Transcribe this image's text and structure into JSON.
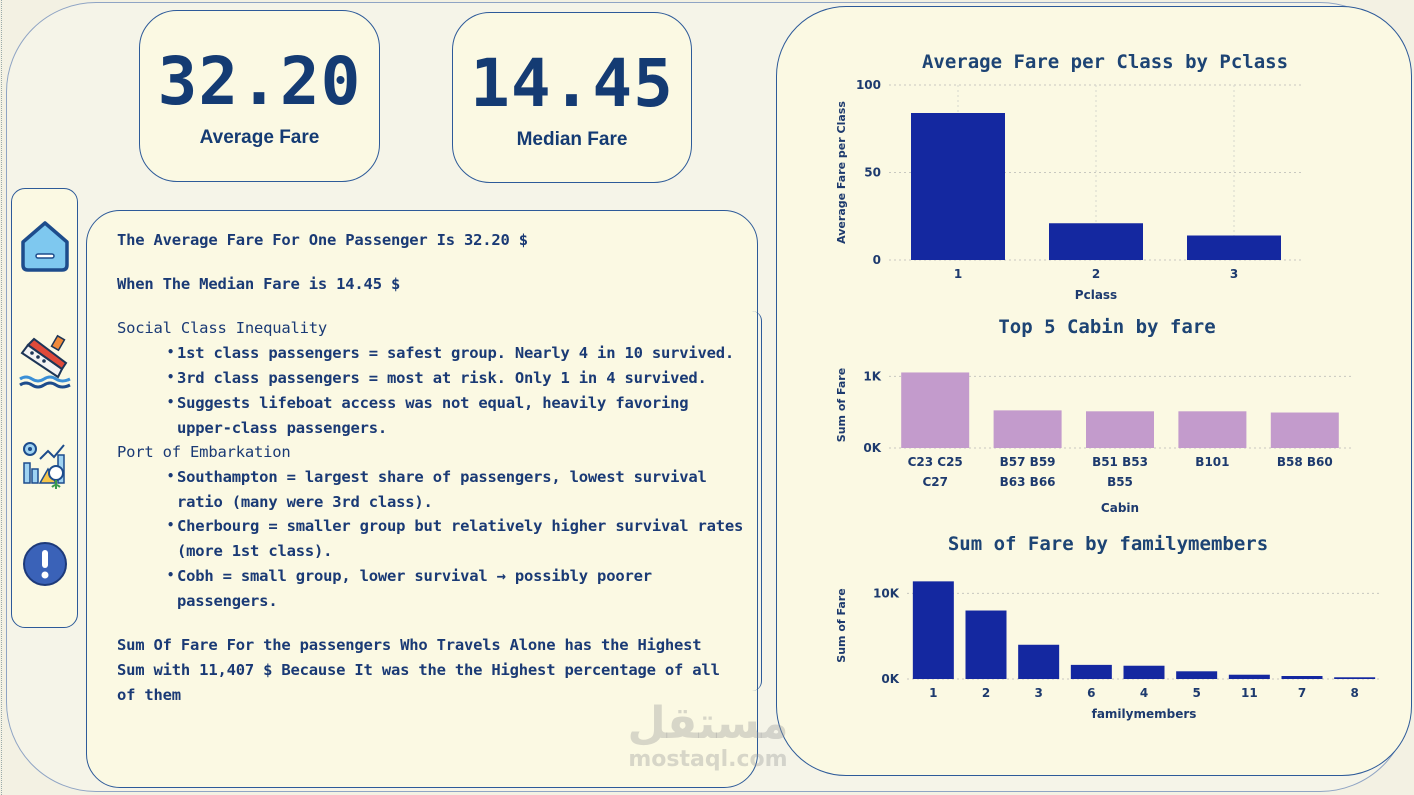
{
  "kpis": {
    "average": {
      "value": "32.20",
      "label": "Average Fare"
    },
    "median": {
      "value": "14.45",
      "label": "Median Fare"
    }
  },
  "nav": {
    "items": [
      {
        "icon": "home-icon"
      },
      {
        "icon": "sinking-ship-icon"
      },
      {
        "icon": "analytics-icon"
      },
      {
        "icon": "info-alert-icon"
      }
    ]
  },
  "insights": {
    "avg_line": "The Average Fare For One Passenger Is 32.20 $",
    "median_line": "When The Median Fare is 14.45 $",
    "class_heading": "Social Class Inequality",
    "class_b1": "1st class passengers = safest group. Nearly 4 in 10 survived.",
    "class_b2": "3rd class passengers = most at risk. Only 1 in 4 survived.",
    "class_b3a": "Suggests lifeboat access was not equal, heavily favoring",
    "class_b3b": "upper-class passengers.",
    "port_heading": "Port of Embarkation",
    "port_b1a": "Southampton = largest share of passengers, lowest survival",
    "port_b1b": "ratio (many were 3rd class).",
    "port_b2a": "Cherbourg = smaller group but relatively higher survival rates",
    "port_b2b": "(more 1st class).",
    "port_b3a": "Cobh = small group, lower survival → possibly poorer",
    "port_b3b": "passengers.",
    "sum_line1": "Sum Of Fare For the passengers Who Travels Alone has the Highest",
    "sum_line2": "Sum with 11,407 $ Because It was the the Highest percentage of all",
    "sum_line3": "of them"
  },
  "watermark": {
    "ar": "مستقل",
    "en": "mostaql.com"
  },
  "chart_data": [
    {
      "type": "bar",
      "title": "Average Fare per Class by Pclass",
      "xlabel": "Pclass",
      "ylabel": "Average Fare per Class",
      "categories": [
        "1",
        "2",
        "3"
      ],
      "values": [
        84,
        21,
        14
      ],
      "ylim": [
        0,
        100
      ],
      "yticks": [
        0,
        50,
        100
      ],
      "ytick_labels": [
        "0",
        "50",
        "100"
      ],
      "color": "#1428a0",
      "grid": true
    },
    {
      "type": "bar",
      "title": "Top 5 Cabin by fare",
      "xlabel": "Cabin",
      "ylabel": "Sum of Fare",
      "categories": [
        [
          "C23 C25",
          "C27"
        ],
        [
          "B57 B59",
          "B63 B66"
        ],
        [
          "B51 B53",
          "B55"
        ],
        [
          "B101"
        ],
        [
          "B58 B60"
        ]
      ],
      "values": [
        1054,
        525,
        512,
        512,
        495
      ],
      "ylim": [
        0,
        1200
      ],
      "yticks": [
        0,
        1000
      ],
      "ytick_labels": [
        "0K",
        "1K"
      ],
      "color": "#c39bcc",
      "grid": true
    },
    {
      "type": "bar",
      "title": "Sum of Fare by familymembers",
      "xlabel": "familymembers",
      "ylabel": "Sum of Fare",
      "categories": [
        "1",
        "2",
        "3",
        "6",
        "4",
        "5",
        "11",
        "7",
        "8"
      ],
      "values": [
        11407,
        8000,
        4000,
        1650,
        1550,
        900,
        500,
        350,
        200
      ],
      "ylim": [
        0,
        12500
      ],
      "yticks": [
        0,
        10000
      ],
      "ytick_labels": [
        "0K",
        "10K"
      ],
      "color": "#1428a0",
      "grid": true
    }
  ]
}
